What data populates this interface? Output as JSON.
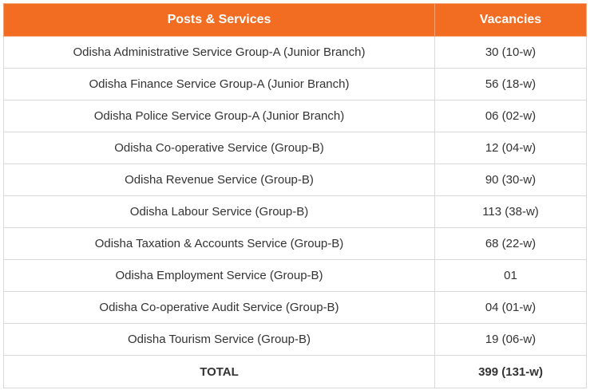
{
  "table": {
    "headers": [
      "Posts & Services",
      "Vacancies"
    ],
    "rows": [
      {
        "post": "Odisha Administrative Service Group-A (Junior Branch)",
        "vacancies": "30 (10-w)"
      },
      {
        "post": "Odisha Finance Service Group-A (Junior Branch)",
        "vacancies": "56 (18-w)"
      },
      {
        "post": "Odisha Police Service Group-A (Junior Branch)",
        "vacancies": "06 (02-w)"
      },
      {
        "post": "Odisha Co-operative Service (Group-B)",
        "vacancies": "12 (04-w)"
      },
      {
        "post": "Odisha Revenue Service (Group-B)",
        "vacancies": "90 (30-w)"
      },
      {
        "post": "Odisha Labour Service (Group-B)",
        "vacancies": "113 (38-w)"
      },
      {
        "post": "Odisha Taxation & Accounts Service (Group-B)",
        "vacancies": "68 (22-w)"
      },
      {
        "post": "Odisha Employment Service (Group-B)",
        "vacancies": "01"
      },
      {
        "post": "Odisha Co-operative Audit Service (Group-B)",
        "vacancies": "04 (01-w)"
      },
      {
        "post": "Odisha Tourism Service (Group-B)",
        "vacancies": "19 (06-w)"
      }
    ],
    "total": {
      "label": "TOTAL",
      "vacancies": "399 (131-w)"
    }
  },
  "colors": {
    "header_bg": "#f26c22",
    "header_text": "#ffffff",
    "border": "#d9d9d9",
    "text": "#333333"
  }
}
